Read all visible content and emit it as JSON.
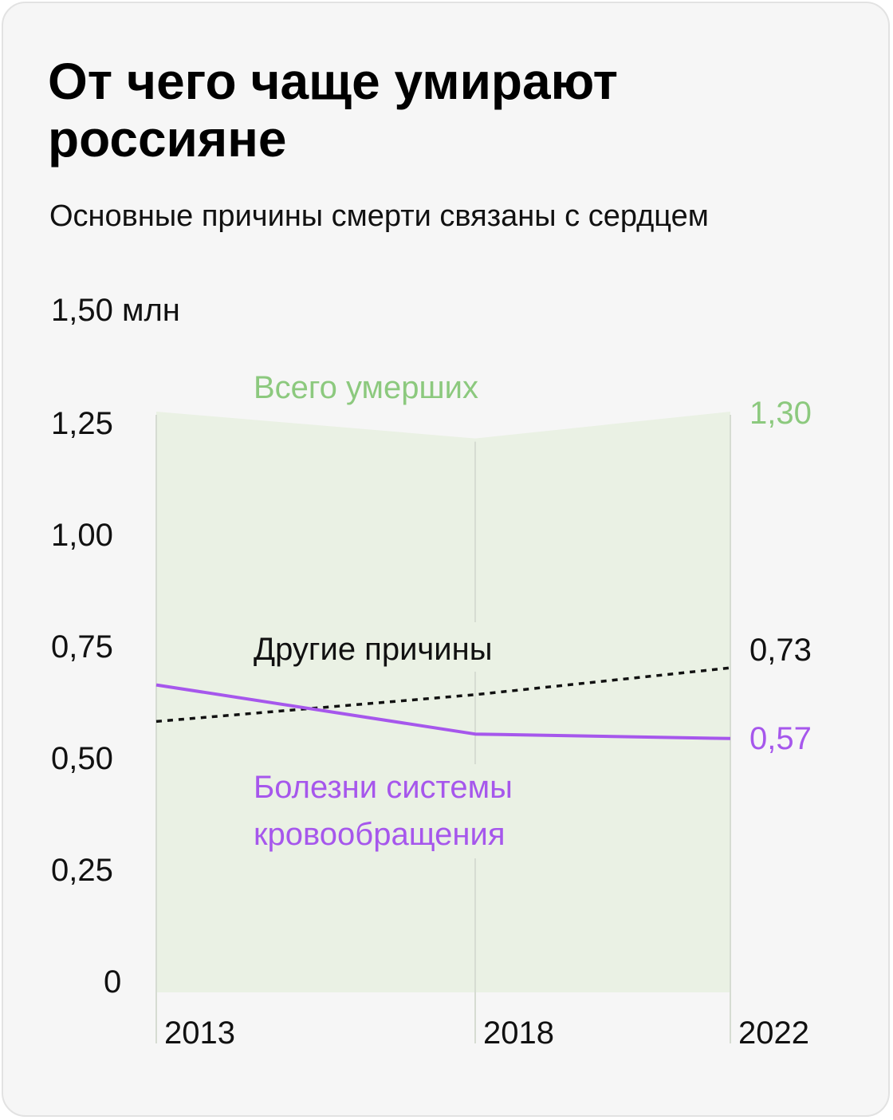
{
  "header": {
    "title_line1": "От чего чаще умирают",
    "title_line2": "россияне",
    "subtitle": "Основные причины смерти связаны с сердцем"
  },
  "colors": {
    "total": "#8cc97e",
    "total_fill": "#eaf1e4",
    "circulatory": "#a657ec",
    "other": "#111111",
    "background": "#f6f6f6"
  },
  "chart_data": {
    "type": "line",
    "title": "От чего чаще умирают россияне",
    "subtitle": "Основные причины смерти связаны с сердцем",
    "x": [
      2013,
      2018,
      2022
    ],
    "x_tick_labels": [
      "2013",
      "2018",
      "2022"
    ],
    "y_tick_labels": [
      "0",
      "0,25",
      "0,50",
      "0,75",
      "1,00",
      "1,25",
      "1,50 млн"
    ],
    "y_ticks": [
      0,
      0.25,
      0.5,
      0.75,
      1.0,
      1.25,
      1.5
    ],
    "unit": "млн",
    "ylim": [
      0,
      1.5
    ],
    "grid": false,
    "legend": "inline labels",
    "series": [
      {
        "name": "Всего умерших",
        "style": "area",
        "values": [
          1.3,
          1.24,
          1.3
        ],
        "end_label": "1,30"
      },
      {
        "name": "Другие причины",
        "style": "dotted",
        "values": [
          0.61,
          0.67,
          0.73
        ],
        "end_label": "0,73"
      },
      {
        "name": "Болезни системы кровообращения",
        "name_lines": [
          "Болезни системы",
          "кровообращения"
        ],
        "style": "solid",
        "values": [
          0.69,
          0.58,
          0.57
        ],
        "end_label": "0,57"
      }
    ]
  }
}
